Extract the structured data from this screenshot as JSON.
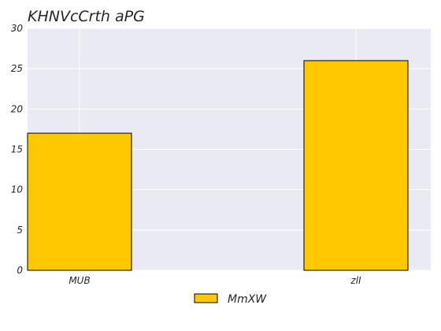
{
  "chart_data": {
    "type": "bar",
    "title": "KHNVcCrth aPG",
    "xlabel": "",
    "ylabel": "",
    "categories": [
      "MUB",
      "zlI"
    ],
    "series": [
      {
        "name": "MmXW",
        "values": [
          17,
          26
        ]
      }
    ],
    "ylim": [
      0,
      30
    ],
    "yticks": [
      0,
      5,
      10,
      15,
      20,
      25,
      30
    ],
    "grid": true,
    "legend_position": "bottom-center",
    "colors": {
      "bar": "#ffc800",
      "bar_edge": "#000000",
      "plot_background": "#eaeaf2",
      "grid": "#ffffff"
    }
  }
}
